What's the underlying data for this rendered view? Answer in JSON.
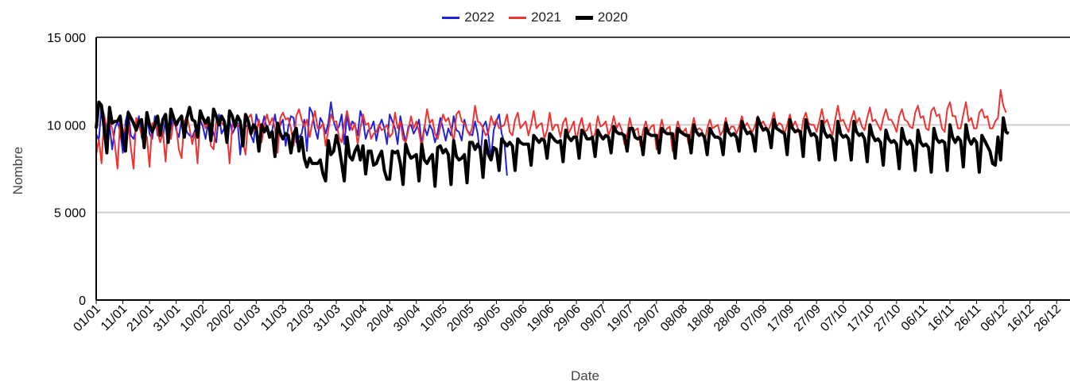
{
  "chart_data": {
    "type": "line",
    "xlabel": "Date",
    "ylabel": "Nombre",
    "ylim": [
      0,
      15000
    ],
    "y_ticks": [
      {
        "value": 0,
        "label": "0"
      },
      {
        "value": 5000,
        "label": "5 000"
      },
      {
        "value": 10000,
        "label": "10 000"
      },
      {
        "value": 15000,
        "label": "15 000"
      }
    ],
    "grid": true,
    "legend_position": "top-center",
    "x_tick_labels": [
      "01/01",
      "11/01",
      "21/01",
      "31/01",
      "10/02",
      "20/02",
      "01/03",
      "11/03",
      "21/03",
      "31/03",
      "10/04",
      "20/04",
      "30/04",
      "10/05",
      "20/05",
      "30/05",
      "09/06",
      "19/06",
      "29/06",
      "09/07",
      "19/07",
      "29/07",
      "08/08",
      "18/08",
      "28/08",
      "07/09",
      "17/09",
      "27/09",
      "07/10",
      "17/10",
      "27/10",
      "06/11",
      "16/11",
      "26/11",
      "06/12",
      "16/12",
      "26/12"
    ],
    "x_tick_step_days": 10,
    "series": [
      {
        "name": "2022",
        "color": "#2222dd",
        "width": 2,
        "values": [
          9500,
          9100,
          11200,
          10500,
          9800,
          10000,
          8600,
          9800,
          10200,
          9600,
          8400,
          10200,
          10800,
          9400,
          9200,
          9800,
          10500,
          9300,
          8900,
          10600,
          9500,
          9200,
          10500,
          9400,
          10000,
          9300,
          10300,
          9100,
          9800,
          10600,
          9700,
          9300,
          10300,
          10100,
          9600,
          9400,
          9300,
          9700,
          9500,
          10300,
          9900,
          9200,
          10200,
          10000,
          9500,
          9000,
          10600,
          9500,
          9800,
          9900,
          10300,
          9500,
          9800,
          10100,
          8300,
          9700,
          9900,
          10000,
          9400,
          9000,
          10600,
          10000,
          9800,
          10500,
          9700,
          9500,
          9700,
          10600,
          9600,
          10000,
          10300,
          8800,
          9900,
          10500,
          10400,
          9000,
          9300,
          9500,
          10300,
          8500,
          11000,
          10700,
          9800,
          9200,
          10400,
          10100,
          9500,
          10100,
          11300,
          10200,
          9700,
          9900,
          10600,
          8900,
          10600,
          9700,
          10200,
          10000,
          9400,
          10800,
          10300,
          9200,
          9700,
          9800,
          10200,
          9100,
          9900,
          10300,
          9800,
          8900,
          10600,
          10200,
          9800,
          8900,
          10500,
          9700,
          9000,
          9900,
          10000,
          9500,
          9800,
          10300,
          8900,
          9900,
          9400,
          10000,
          9700,
          9000,
          9600,
          10400,
          9800,
          9100,
          9800,
          9400,
          10500,
          9700,
          9600,
          9100,
          10300,
          9700,
          9500,
          9400,
          10200,
          9500,
          8100,
          9900,
          10200,
          9400,
          8100,
          9700,
          10200,
          10600,
          9500,
          9000,
          7100
        ]
      },
      {
        "name": "2021",
        "color": "#ee3333",
        "width": 2,
        "values": [
          8300,
          9200,
          7800,
          10600,
          9600,
          10200,
          9800,
          8900,
          7500,
          10300,
          9500,
          9900,
          10100,
          8700,
          7500,
          10400,
          10000,
          9400,
          9600,
          9300,
          7600,
          10100,
          10100,
          9600,
          9000,
          9600,
          7900,
          10000,
          9200,
          10200,
          9900,
          8600,
          8100,
          10200,
          10500,
          9800,
          8900,
          9600,
          7800,
          10400,
          10300,
          9800,
          10200,
          8800,
          8600,
          10200,
          10300,
          10100,
          10000,
          9600,
          7800,
          10000,
          10100,
          10000,
          9900,
          9000,
          8300,
          10400,
          10600,
          9800,
          9600,
          10300,
          9000,
          10000,
          10600,
          10000,
          10400,
          9800,
          8400,
          10400,
          10700,
          10300,
          10400,
          9800,
          8800,
          10500,
          10900,
          10300,
          9900,
          10300,
          9300,
          10100,
          10800,
          9800,
          9800,
          10100,
          8800,
          9700,
          10600,
          10200,
          10200,
          9300,
          9000,
          10000,
          10800,
          10100,
          9700,
          10100,
          8900,
          9800,
          10600,
          10000,
          10100,
          9200,
          9500,
          9600,
          10000,
          9700,
          9800,
          10000,
          9300,
          9500,
          10700,
          9800,
          10200,
          9200,
          9000,
          9700,
          10500,
          9800,
          10200,
          9600,
          8700,
          9800,
          10900,
          10100,
          10300,
          9500,
          9200,
          9900,
          10600,
          10200,
          10400,
          9800,
          9000,
          10600,
          10800,
          10200,
          10100,
          9700,
          9400,
          9900,
          11100,
          10200,
          10100,
          9800,
          9400,
          9600,
          10500,
          10000,
          10300,
          9800,
          9900,
          10000,
          10600,
          9600,
          9400,
          10300,
          10700,
          9800,
          10000,
          10200,
          9400,
          10000,
          10800,
          9800,
          10000,
          10100,
          9200,
          9700,
          10700,
          9700,
          10000,
          10000,
          9300,
          10100,
          10400,
          9500,
          9800,
          10200,
          9000,
          9900,
          10400,
          9600,
          9700,
          10100,
          9200,
          9500,
          10500,
          9900,
          10000,
          10200,
          9400,
          9800,
          10500,
          9800,
          10100,
          9700,
          8900,
          9500,
          10400,
          9700,
          9700,
          9800,
          8800,
          9700,
          10200,
          9600,
          9900,
          10000,
          8600,
          9600,
          10300,
          9600,
          9800,
          9900,
          8500,
          9500,
          10200,
          9700,
          9600,
          9800,
          8900,
          9700,
          10400,
          9700,
          9800,
          9700,
          9000,
          9800,
          10300,
          9800,
          9900,
          10000,
          9400,
          9700,
          10400,
          9600,
          9900,
          9900,
          9500,
          9900,
          10500,
          9900,
          10100,
          9800,
          9600,
          10000,
          10500,
          10000,
          10200,
          9900,
          9700,
          10100,
          10700,
          9900,
          10100,
          10000,
          9500,
          10000,
          10600,
          9900,
          10200,
          9800,
          9200,
          10300,
          10700,
          10100,
          10000,
          10000,
          9600,
          10200,
          10900,
          10100,
          10300,
          9800,
          9400,
          10300,
          11100,
          10200,
          10300,
          9900,
          9600,
          10300,
          10800,
          10100,
          10400,
          9900,
          9700,
          10400,
          11000,
          10200,
          10300,
          10000,
          9700,
          10400,
          10900,
          10300,
          10300,
          10000,
          9600,
          10500,
          10900,
          10300,
          10200,
          9900,
          9800,
          10700,
          11100,
          10400,
          10500,
          9800,
          9700,
          10800,
          11000,
          10500,
          10600,
          9800,
          9600,
          10900,
          11300,
          10500,
          10500,
          9800,
          9800,
          10600,
          11300,
          10200,
          10400,
          9800,
          9800,
          10700,
          10900,
          10400,
          10500,
          9800,
          9800,
          10200,
          10400,
          12000,
          11100,
          10700
        ]
      },
      {
        "name": "2020",
        "color": "#000000",
        "width": 4,
        "values": [
          9800,
          11300,
          11100,
          9800,
          8400,
          11000,
          10100,
          10200,
          10200,
          10500,
          9200,
          8500,
          10700,
          10400,
          10100,
          9700,
          10200,
          10300,
          8700,
          10700,
          10000,
          9600,
          10000,
          10500,
          9400,
          10300,
          10600,
          9000,
          10900,
          10400,
          10000,
          10300,
          10500,
          9300,
          10400,
          11000,
          10300,
          10200,
          9300,
          10800,
          10400,
          10100,
          10400,
          9100,
          10900,
          10500,
          10000,
          10500,
          10200,
          9000,
          10800,
          10500,
          9900,
          10500,
          10200,
          8800,
          10600,
          10200,
          9500,
          10000,
          9800,
          8500,
          10000,
          9600,
          9900,
          9300,
          9600,
          8200,
          10100,
          9500,
          9200,
          9500,
          9400,
          8400,
          9500,
          9800,
          8500,
          9300,
          8100,
          7600,
          8100,
          7800,
          7800,
          7800,
          8000,
          7200,
          6800,
          9100,
          8300,
          8500,
          9400,
          8800,
          7800,
          6800,
          9300,
          8200,
          8000,
          8500,
          8800,
          8000,
          8800,
          7200,
          8500,
          8500,
          7700,
          7800,
          8200,
          8500,
          7400,
          6900,
          6900,
          8500,
          8400,
          8500,
          7800,
          6600,
          8900,
          8400,
          8100,
          8200,
          8300,
          6800,
          8900,
          8000,
          7800,
          8100,
          8300,
          6500,
          8700,
          8800,
          8400,
          8600,
          8300,
          6600,
          9100,
          8200,
          8000,
          8100,
          8300,
          6700,
          9000,
          9000,
          8600,
          8900,
          8600,
          7000,
          9100,
          8300,
          8000,
          8700,
          8600,
          7400,
          9200,
          9000,
          8800,
          9000,
          8800,
          7400,
          9200,
          9000,
          8900,
          8900,
          8900,
          7700,
          9400,
          9200,
          9000,
          9200,
          9100,
          8100,
          9500,
          9300,
          9100,
          9000,
          9100,
          7900,
          9700,
          9300,
          9100,
          9300,
          9300,
          8100,
          9700,
          9500,
          9200,
          9200,
          9300,
          8200,
          9700,
          9400,
          9200,
          9400,
          9300,
          8400,
          9900,
          9600,
          9500,
          9500,
          9400,
          8500,
          9800,
          9800,
          9300,
          9200,
          9300,
          8300,
          9800,
          9500,
          9400,
          9400,
          9400,
          8400,
          9800,
          9600,
          9500,
          9500,
          9500,
          8100,
          9800,
          9600,
          9500,
          9400,
          9400,
          8400,
          10000,
          9600,
          9400,
          9500,
          9300,
          8300,
          9800,
          9500,
          9300,
          9300,
          9200,
          8300,
          10100,
          9600,
          9400,
          9500,
          9300,
          8500,
          10200,
          9800,
          9500,
          9600,
          9400,
          8500,
          10400,
          10000,
          9700,
          9800,
          9600,
          8700,
          10300,
          9800,
          9700,
          9600,
          9500,
          8300,
          10300,
          9800,
          9600,
          9700,
          9600,
          8200,
          10300,
          9800,
          9400,
          9500,
          9300,
          8000,
          10200,
          9600,
          9300,
          9400,
          9200,
          8000,
          10200,
          9500,
          9300,
          9400,
          9200,
          8000,
          10200,
          9600,
          9400,
          9500,
          9200,
          7900,
          10000,
          9400,
          9100,
          9200,
          9000,
          7700,
          9700,
          9200,
          9000,
          9100,
          8900,
          7500,
          9800,
          9200,
          8900,
          9100,
          8800,
          7400,
          9700,
          9000,
          8800,
          8900,
          8700,
          7300,
          9800,
          9200,
          9000,
          9100,
          9000,
          7400,
          10000,
          9300,
          9000,
          9300,
          9100,
          7600,
          10000,
          9200,
          8900,
          9200,
          9000,
          7300,
          9400,
          9100,
          8800,
          8500,
          7800,
          7700,
          9300,
          8000,
          10400,
          9600,
          9500
        ]
      }
    ]
  }
}
